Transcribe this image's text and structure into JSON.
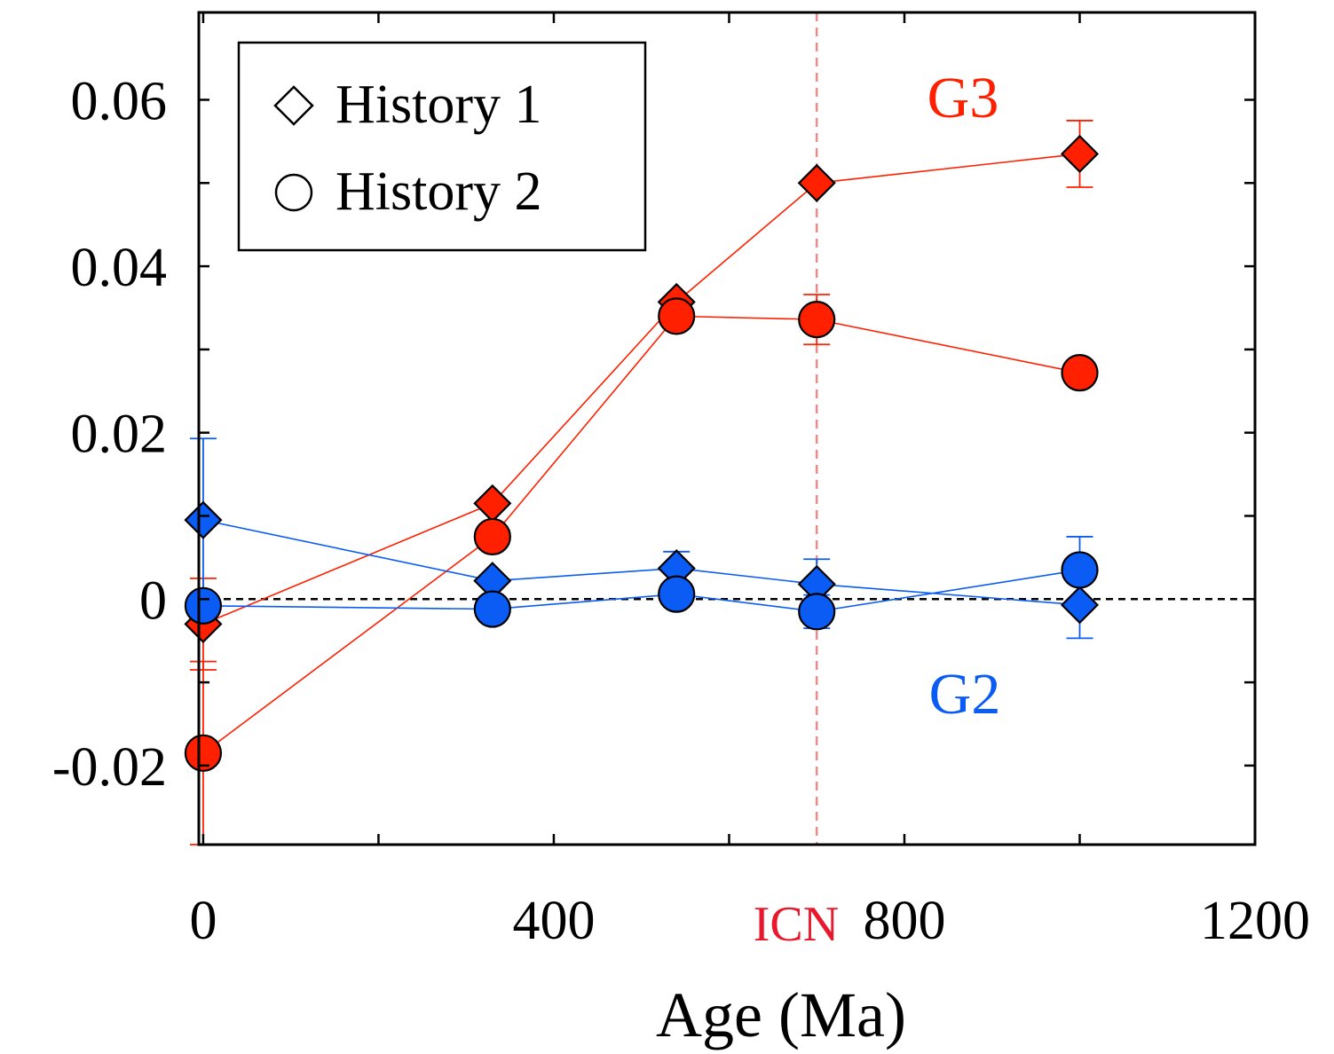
{
  "chart_data": {
    "type": "scatter",
    "xlabel": "Age (Ma)",
    "ylabel": "",
    "xlim": [
      -5,
      1200
    ],
    "ylim": [
      -0.0295,
      0.0705
    ],
    "x_ticks": [
      0,
      400,
      800,
      1200
    ],
    "x_tick_labels": [
      "0",
      "400",
      "800",
      "1200"
    ],
    "y_ticks": [
      -0.02,
      0,
      0.02,
      0.04,
      0.06
    ],
    "y_tick_labels": [
      "-0.02",
      "0",
      "0.02",
      "0.04",
      "0.06"
    ],
    "legend": {
      "position": "top-left",
      "entries": [
        {
          "label": "History 1",
          "marker": "diamond"
        },
        {
          "label": "History 2",
          "marker": "circle"
        }
      ]
    },
    "annotations": {
      "g3": {
        "text": "G3",
        "color": "#ff2000"
      },
      "g2": {
        "text": "G2",
        "color": "#0a5cf5"
      },
      "icn": {
        "text": "ICN",
        "x": 700,
        "color": "#e8192c",
        "line_color": "#f08a8a"
      }
    },
    "zero_line": {
      "y": 0,
      "style": "dashed",
      "color": "#000000"
    },
    "series": [
      {
        "group": "G3",
        "marker": "diamond",
        "color": "#ff2000",
        "x": [
          0,
          330,
          540,
          700,
          1000
        ],
        "y": [
          -0.003,
          0.0115,
          0.0357,
          0.05,
          0.0535
        ],
        "err": [
          0.0055,
          0.0003,
          0.0002,
          0.0002,
          0.004
        ]
      },
      {
        "group": "G3",
        "marker": "circle",
        "color": "#ff2000",
        "x": [
          0,
          330,
          540,
          700,
          1000
        ],
        "y": [
          -0.0185,
          0.0075,
          0.034,
          0.0336,
          0.0272
        ],
        "err": [
          0.011,
          0.0002,
          0.0006,
          0.003,
          0
        ]
      },
      {
        "group": "G2",
        "marker": "diamond",
        "color": "#0a5cf5",
        "x": [
          0,
          330,
          540,
          700,
          1000
        ],
        "y": [
          0.0095,
          0.0022,
          0.0037,
          0.0018,
          -0.0007
        ],
        "err": [
          0.0098,
          0,
          0.002,
          0.003,
          0.004
        ]
      },
      {
        "group": "G2",
        "marker": "circle",
        "color": "#0a5cf5",
        "x": [
          0,
          330,
          540,
          700,
          1000
        ],
        "y": [
          -0.0008,
          -0.0012,
          0.0006,
          -0.0015,
          0.0035
        ],
        "err": [
          0,
          0,
          0,
          0.002,
          0.004
        ]
      }
    ]
  }
}
